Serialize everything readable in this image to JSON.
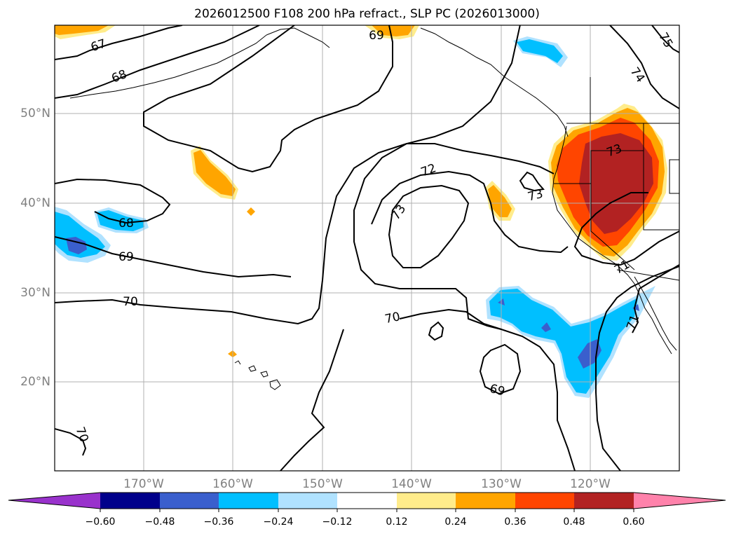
{
  "title": "2026012500 F108 200 hPa refract., SLP PC (2026013000)",
  "map": {
    "lat_labels": [
      "50°N",
      "40°N",
      "30°N",
      "20°N"
    ],
    "lon_labels": [
      "170°W",
      "160°W",
      "150°W",
      "140°W",
      "130°W",
      "120°W"
    ],
    "contour_labels": [
      "67",
      "68",
      "69",
      "74",
      "75",
      "72",
      "73",
      "73",
      "68",
      "69",
      "70",
      "70",
      "69",
      "70",
      "73",
      "71",
      "71"
    ]
  },
  "colorbar": {
    "ticks": [
      "−0.60",
      "−0.48",
      "−0.36",
      "−0.24",
      "−0.12",
      "0.12",
      "0.24",
      "0.36",
      "0.48",
      "0.60"
    ],
    "colors": [
      "#9932cc",
      "#00008b",
      "#3a5fcd",
      "#00bfff",
      "#b0e2ff",
      "#ffffff",
      "#ffec8b",
      "#ffa500",
      "#ff4500",
      "#b22222",
      "#ff82ab"
    ]
  }
}
